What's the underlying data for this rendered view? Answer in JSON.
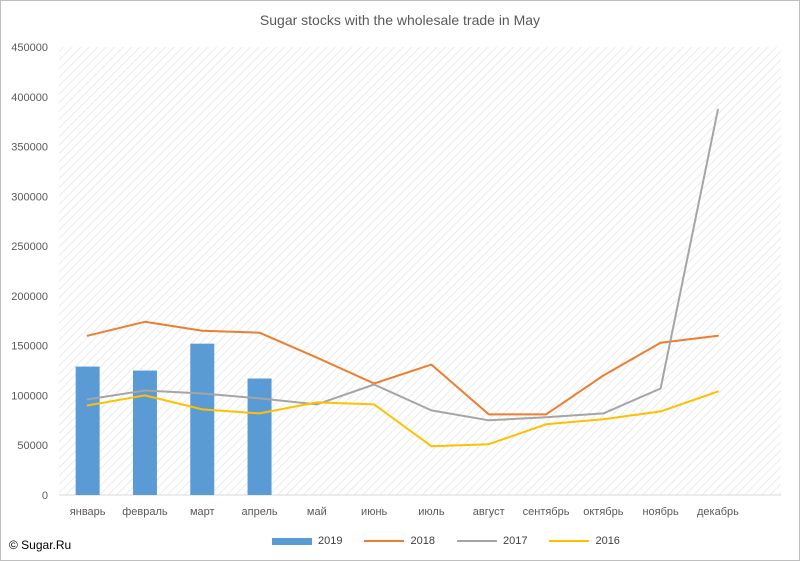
{
  "chart_data": {
    "type": "bar+line",
    "title": "Sugar stocks with the wholesale trade in May",
    "categories": [
      "январь",
      "февраль",
      "март",
      "апрель",
      "май",
      "июнь",
      "июль",
      "август",
      "сентябрь",
      "октябрь",
      "ноябрь",
      "декабрь"
    ],
    "ylim": [
      0,
      450000
    ],
    "yticks": [
      "0",
      "50000",
      "100000",
      "150000",
      "200000",
      "250000",
      "300000",
      "350000",
      "400000",
      "450000"
    ],
    "series": [
      {
        "name": "2019",
        "kind": "bar",
        "color": "#5b9bd5",
        "values": [
          129000,
          125000,
          152000,
          117000,
          null,
          null,
          null,
          null,
          null,
          null,
          null,
          null
        ]
      },
      {
        "name": "2018",
        "kind": "line",
        "color": "#ed7d31",
        "values": [
          160000,
          174000,
          165000,
          163000,
          138000,
          112000,
          131000,
          81000,
          81000,
          120000,
          153000,
          160000
        ]
      },
      {
        "name": "2017",
        "kind": "line",
        "color": "#a5a5a5",
        "values": [
          96000,
          105000,
          102000,
          97000,
          91000,
          111000,
          85000,
          75000,
          78000,
          82000,
          107000,
          387000
        ]
      },
      {
        "name": "2016",
        "kind": "line",
        "color": "#ffc000",
        "values": [
          90000,
          100000,
          86000,
          82000,
          93000,
          91000,
          49000,
          51000,
          71000,
          76000,
          84000,
          104000
        ]
      }
    ],
    "grid": "hatched",
    "legend_position": "bottom"
  },
  "copyright": "© Sugar.Ru"
}
